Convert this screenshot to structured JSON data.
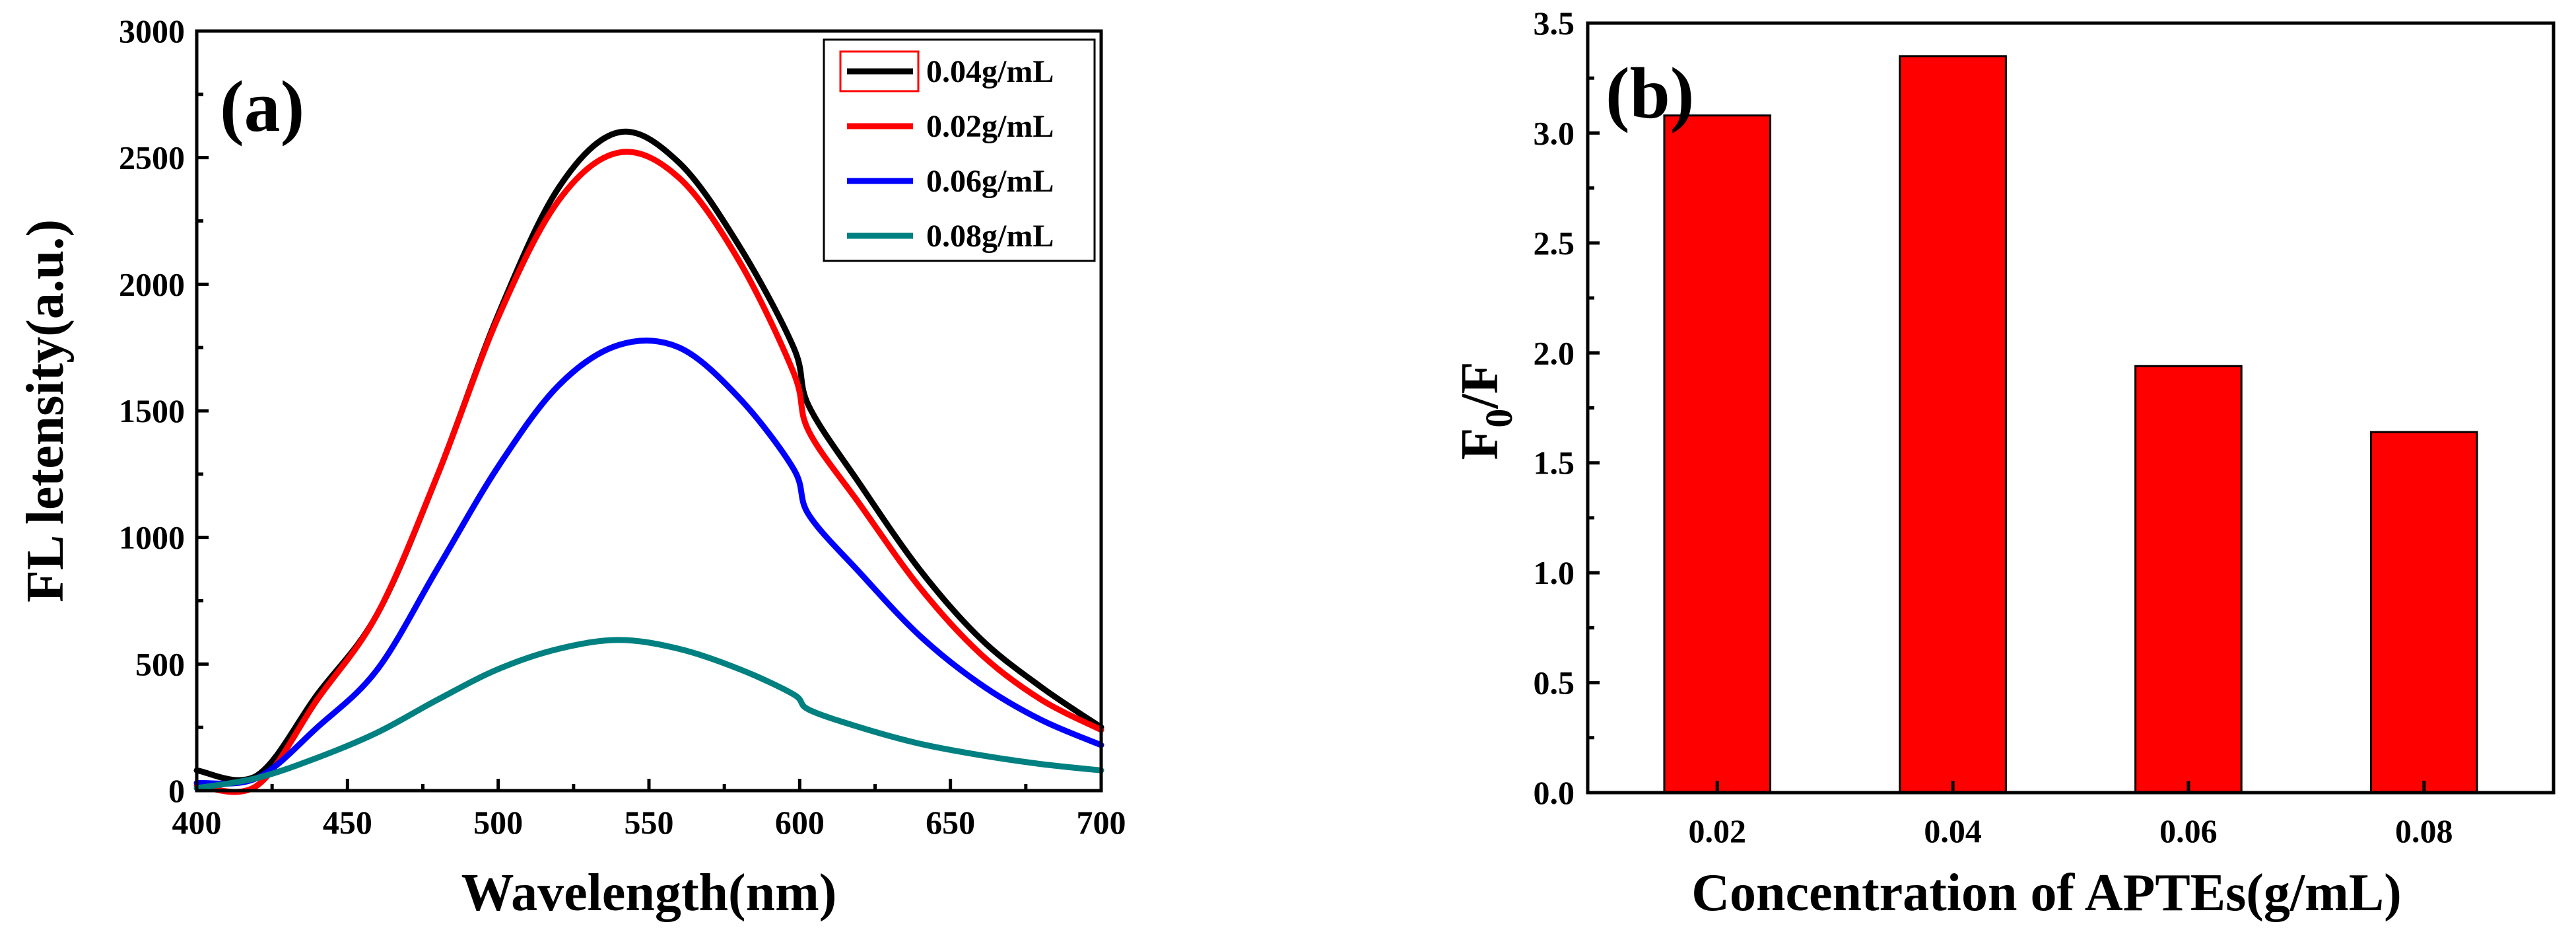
{
  "chart_data": [
    {
      "type": "line",
      "panel_label": "(a)",
      "xlabel": "Wavelength(nm)",
      "ylabel": "FL letensity(a.u.)",
      "xlim": [
        400,
        700
      ],
      "ylim": [
        0,
        3000
      ],
      "xticks": [
        400,
        450,
        500,
        550,
        600,
        650,
        700
      ],
      "yticks": [
        0,
        500,
        1000,
        1500,
        2000,
        2500,
        3000
      ],
      "x": [
        400,
        420,
        440,
        460,
        480,
        500,
        520,
        540,
        560,
        580,
        598,
        603,
        620,
        640,
        660,
        680,
        700
      ],
      "series": [
        {
          "name": "0.04g/mL",
          "color": "#000000",
          "values": [
            80,
            60,
            380,
            700,
            1250,
            1880,
            2380,
            2600,
            2480,
            2150,
            1750,
            1520,
            1210,
            870,
            600,
            410,
            250
          ]
        },
        {
          "name": "0.02g/mL",
          "color": "#ff0000",
          "values": [
            20,
            20,
            360,
            700,
            1250,
            1870,
            2330,
            2520,
            2420,
            2090,
            1650,
            1420,
            1130,
            800,
            540,
            360,
            240
          ]
        },
        {
          "name": "0.06g/mL",
          "color": "#0000ff",
          "values": [
            30,
            50,
            250,
            480,
            880,
            1280,
            1600,
            1760,
            1750,
            1550,
            1270,
            1090,
            860,
            610,
            420,
            280,
            180
          ]
        },
        {
          "name": "0.08g/mL",
          "color": "#008080",
          "values": [
            10,
            50,
            130,
            230,
            360,
            480,
            560,
            595,
            560,
            480,
            380,
            320,
            250,
            185,
            140,
            105,
            80
          ]
        }
      ],
      "legend_position": "top-right"
    },
    {
      "type": "bar",
      "panel_label": "(b)",
      "xlabel": "Concentration of APTEs(g/mL)",
      "ylabel": "F0/F",
      "ylabel_main": "F",
      "ylabel_sub": "0",
      "ylabel_tail": "/F",
      "ylim": [
        0,
        3.5
      ],
      "yticks": [
        "0.0",
        "0.5",
        "1.0",
        "1.5",
        "2.0",
        "2.5",
        "3.0",
        "3.5"
      ],
      "categories": [
        "0.02",
        "0.04",
        "0.06",
        "0.08"
      ],
      "values": [
        3.08,
        3.35,
        1.94,
        1.64
      ],
      "color": "#ff0000"
    }
  ]
}
